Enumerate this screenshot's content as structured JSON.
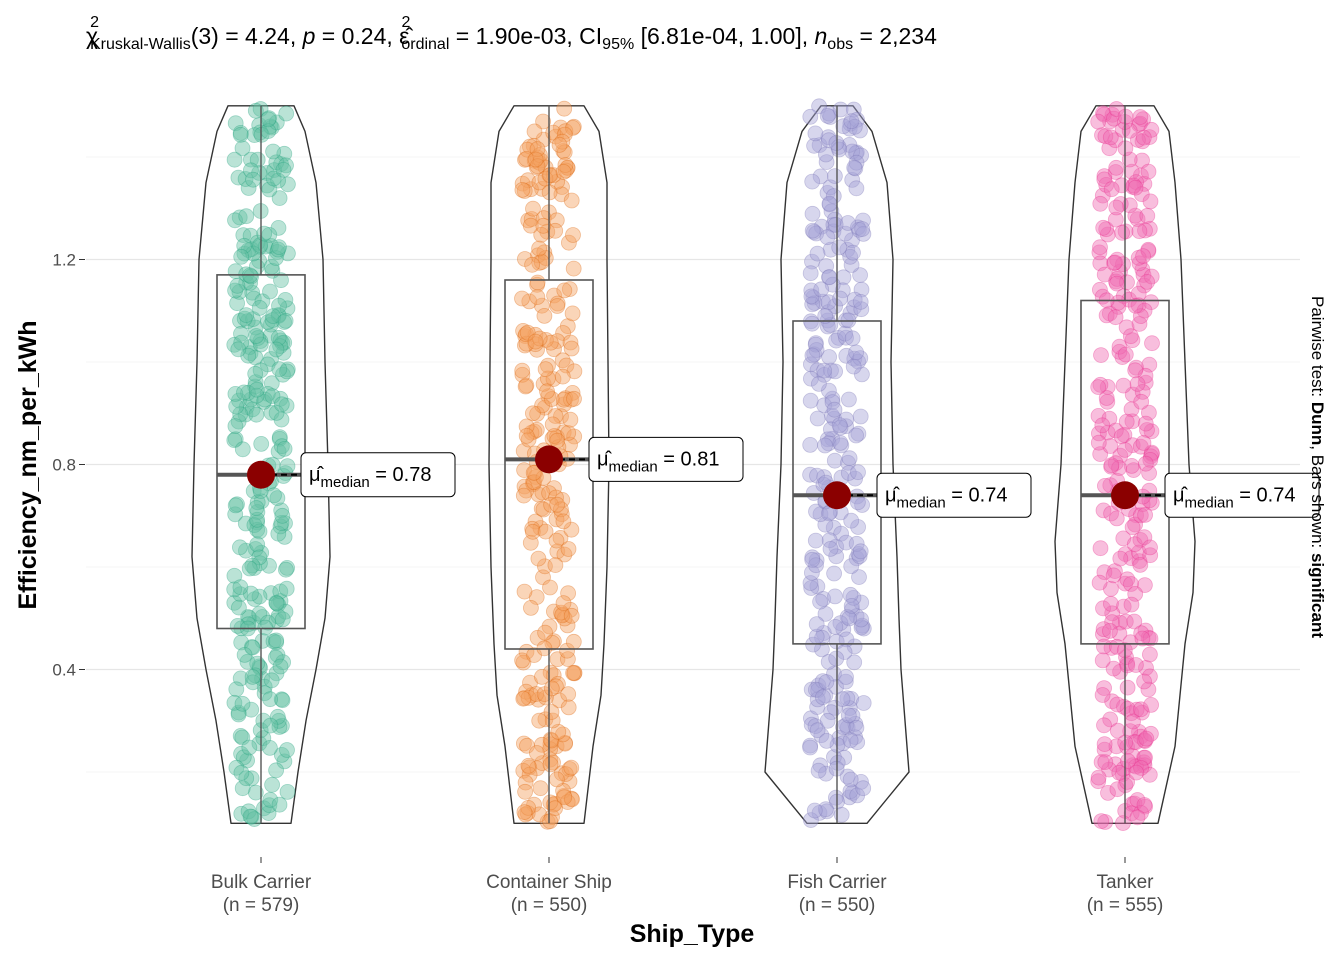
{
  "chart_data": {
    "type": "violin-box-scatter",
    "subtitle": {
      "chi_symbol": "χ",
      "chi_sup": "2",
      "chi_sub": "Kruskal-Wallis",
      "df_part": "(3) = 4.24, ",
      "p_symbol": "p",
      "p_part": " = 0.24, ",
      "eps_symbol": "ε̂",
      "eps_sup": "2",
      "eps_sub": "ordinal",
      "eps_part": " = 1.90e-03, CI",
      "ci_sub": "95%",
      "ci_part": " [6.81e-04, 1.00], ",
      "n_symbol": "n",
      "n_sub": "obs",
      "n_part": " = 2,234"
    },
    "xlabel": "Ship_Type",
    "ylabel": "Efficiency_nm_per_kWh",
    "side_caption": {
      "prefix": "Pairwise test: ",
      "test": "Dunn",
      "middle": ", Bars shown: ",
      "shown": "significant"
    },
    "yticks": [
      0.4,
      0.8,
      1.2
    ],
    "ytick_labels": [
      "0.4",
      "0.8",
      "1.2"
    ],
    "ylim": [
      0.0,
      1.55
    ],
    "data_range": [
      0.1,
      1.5
    ],
    "grid": true,
    "groups": [
      {
        "category": "Bulk Carrier",
        "n_label": "(n = 579)",
        "n": 579,
        "color": "#66C2A5",
        "dark": "#1B9E77",
        "q1": 0.48,
        "median": 0.78,
        "q3": 1.17,
        "min": 0.1,
        "max": 1.5,
        "median_label_sym": "μ̂",
        "median_label_sub": "median",
        "median_label_val": " = 0.78"
      },
      {
        "category": "Container Ship",
        "n_label": "(n = 550)",
        "n": 550,
        "color": "#F4A261",
        "dark": "#D95F02",
        "q1": 0.44,
        "median": 0.81,
        "q3": 1.16,
        "min": 0.1,
        "max": 1.5,
        "median_label_sym": "μ̂",
        "median_label_sub": "median",
        "median_label_val": " = 0.81"
      },
      {
        "category": "Fish Carrier",
        "n_label": "(n = 550)",
        "n": 550,
        "color": "#A7A4D6",
        "dark": "#7570B3",
        "q1": 0.45,
        "median": 0.74,
        "q3": 1.08,
        "min": 0.1,
        "max": 1.5,
        "median_label_sym": "μ̂",
        "median_label_sub": "median",
        "median_label_val": " = 0.74"
      },
      {
        "category": "Tanker",
        "n_label": "(n = 555)",
        "n": 555,
        "color": "#F06FB4",
        "dark": "#E7298A",
        "q1": 0.45,
        "median": 0.74,
        "q3": 1.12,
        "min": 0.1,
        "max": 1.5,
        "median_label_sym": "μ̂",
        "median_label_sub": "median",
        "median_label_val": " = 0.74"
      }
    ],
    "median_point_color": "#8B0000"
  }
}
